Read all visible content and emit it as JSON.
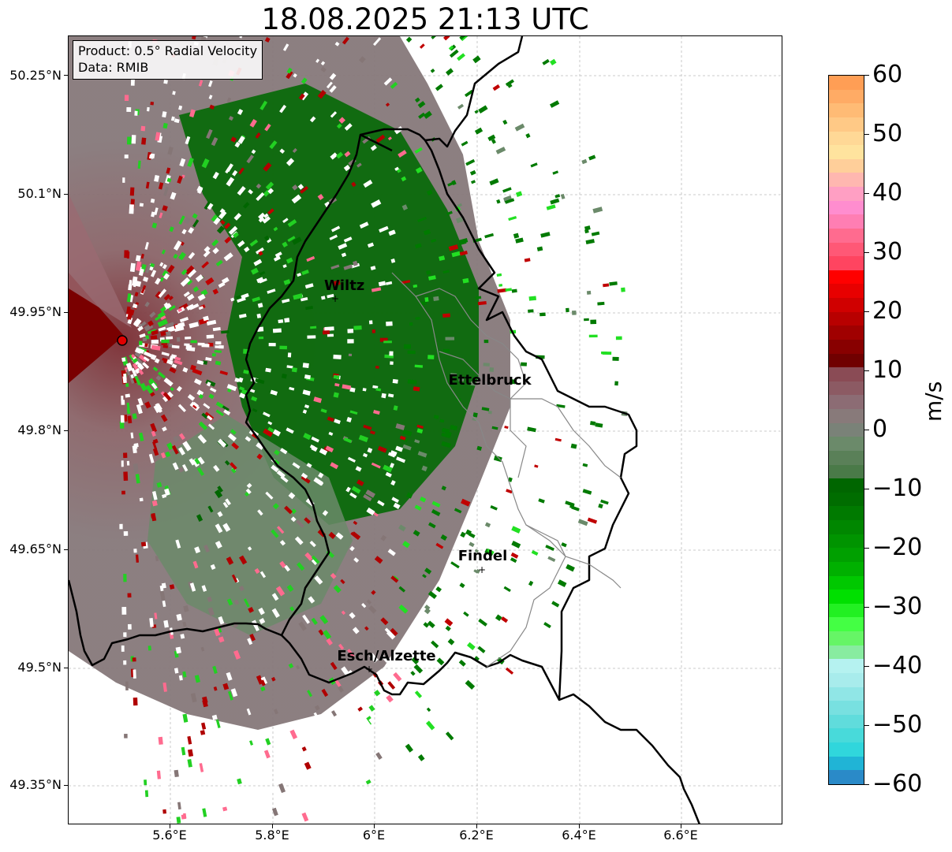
{
  "title": "18.08.2025 21:13 UTC",
  "info": {
    "product": "Product: 0.5° Radial Velocity",
    "data": "Data: RMIB"
  },
  "lat_labels": [
    "50.25°N",
    "50.1°N",
    "49.95°N",
    "49.8°N",
    "49.65°N",
    "49.5°N",
    "49.35°N"
  ],
  "lon_labels": [
    "5.6°E",
    "5.8°E",
    "6°E",
    "6.2°E",
    "6.4°E",
    "6.6°E"
  ],
  "cities": [
    {
      "name": "Wiltz"
    },
    {
      "name": "Ettelbruck"
    },
    {
      "name": "Findel"
    },
    {
      "name": "Esch/Alzette"
    }
  ],
  "radar_marker": "radar-site",
  "colorbar": {
    "unit": "m/s",
    "tick_labels": [
      "60",
      "50",
      "40",
      "30",
      "20",
      "10",
      "0",
      "−10",
      "−20",
      "−30",
      "−40",
      "−50",
      "−60"
    ],
    "min": -60,
    "max": 60,
    "colors_top_to_bottom": [
      "#ff9e55",
      "#ffab65",
      "#ffbb75",
      "#ffc986",
      "#ffd896",
      "#ffe39e",
      "#ffcf9a",
      "#ffb7b0",
      "#ff9fc3",
      "#ff8dcf",
      "#ff7eb3",
      "#ff6b8f",
      "#ff5876",
      "#ff4460",
      "#ff0000",
      "#e80000",
      "#d00000",
      "#b80000",
      "#a00000",
      "#880000",
      "#700000",
      "#8a4b55",
      "#8c5a63",
      "#8c6c74",
      "#887a7a",
      "#7a8278",
      "#6b8a6a",
      "#5a8058",
      "#4a7a48",
      "#006600",
      "#006d00",
      "#007a00",
      "#008700",
      "#009400",
      "#00a000",
      "#00b000",
      "#00c800",
      "#00e000",
      "#22f022",
      "#44ff44",
      "#66f566",
      "#88eca0",
      "#b5f2f0",
      "#a8ecec",
      "#90e6e6",
      "#78e0e0",
      "#60dcdc",
      "#48dada",
      "#30d6dc",
      "#20b4d6",
      "#2a8ac8"
    ]
  },
  "colors": {
    "approaching_green": "#007a00",
    "receding_red": "#b00000",
    "zero_gray": "#857676",
    "border": "#000000",
    "canton_border": "#888888"
  }
}
